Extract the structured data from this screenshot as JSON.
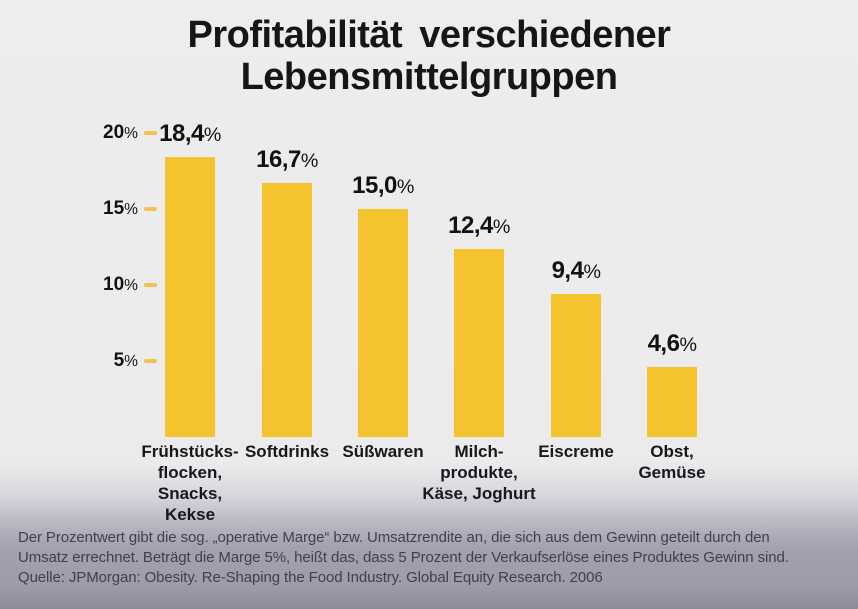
{
  "title": {
    "line1": "Profitabilität verschiedener",
    "line2": "Lebensmittelgruppen"
  },
  "chart_data": {
    "type": "bar",
    "title": "Profitabilität verschiedener Lebensmittelgruppen",
    "categories": [
      "Frühstücks-\nflocken,\nSnacks,\nKekse",
      "Softdrinks",
      "Süßwaren",
      "Milch-\nprodukte,\nKäse, Joghurt",
      "Eiscreme",
      "Obst,\nGemüse"
    ],
    "values": [
      18.4,
      16.7,
      15.0,
      12.4,
      9.4,
      4.6
    ],
    "value_labels": [
      "18,4%",
      "16,7%",
      "15,0%",
      "12,4%",
      "9,4%",
      "4,6%"
    ],
    "ylabel": "",
    "xlabel": "",
    "ylim": [
      0,
      21
    ],
    "yticks": [
      5,
      10,
      15,
      20
    ],
    "ytick_labels": [
      "5%",
      "10%",
      "15%",
      "20%"
    ],
    "grid": false,
    "legend": null,
    "bar_color": "#f5c32e"
  },
  "footer": {
    "line1": "Der Prozentwert gibt die sog. „operative Marge“ bzw. Umsatzrendite an, die sich aus dem Gewinn geteilt durch den",
    "line2": "Umsatz errechnet. Beträgt die Marge 5%, heißt das, dass 5 Prozent der Verkaufserlöse eines Produktes Gewinn sind.",
    "line3": "Quelle: JPMorgan: Obesity. Re-Shaping the Food Industry. Global Equity Research. 2006"
  },
  "colors": {
    "bar": "#f5c32e",
    "tick": "#f0c353",
    "title_text": "#161616",
    "footer_text": "#403f4a",
    "background_top": "#ececed",
    "background_bottom": "#8e8b99"
  }
}
